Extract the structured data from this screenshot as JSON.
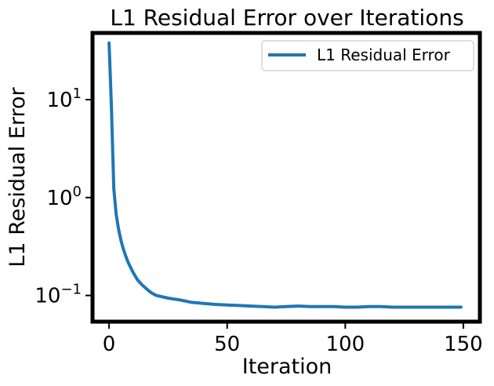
{
  "chart_data": {
    "type": "line",
    "title": "L1 Residual Error over Iterations",
    "xlabel": "Iteration",
    "ylabel": "L1 Residual Error",
    "yscale": "log",
    "xlim": [
      -7,
      157
    ],
    "ylim": [
      0.054,
      48
    ],
    "grid": false,
    "legend": {
      "position": "top-right"
    },
    "x_ticks": [
      {
        "value": 0,
        "label": "0"
      },
      {
        "value": 50,
        "label": "50"
      },
      {
        "value": 100,
        "label": "100"
      },
      {
        "value": 150,
        "label": "150"
      }
    ],
    "y_ticks": [
      {
        "value": 0.1,
        "base": "10",
        "exp": "−1"
      },
      {
        "value": 1,
        "base": "10",
        "exp": "0"
      },
      {
        "value": 10,
        "base": "10",
        "exp": "1"
      }
    ],
    "series": [
      {
        "name": "L1 Residual Error",
        "color": "#1f77b4",
        "x": [
          0,
          1,
          2,
          3,
          4,
          5,
          6,
          7,
          8,
          10,
          12,
          14,
          16,
          18,
          20,
          25,
          30,
          35,
          40,
          45,
          50,
          55,
          60,
          65,
          70,
          75,
          80,
          85,
          90,
          95,
          100,
          105,
          110,
          115,
          120,
          125,
          130,
          135,
          140,
          145,
          149
        ],
        "y": [
          38,
          8.5,
          1.25,
          0.68,
          0.48,
          0.37,
          0.3,
          0.255,
          0.22,
          0.175,
          0.145,
          0.128,
          0.116,
          0.106,
          0.1,
          0.094,
          0.09,
          0.085,
          0.083,
          0.081,
          0.08,
          0.079,
          0.078,
          0.077,
          0.076,
          0.077,
          0.078,
          0.077,
          0.077,
          0.077,
          0.076,
          0.076,
          0.077,
          0.077,
          0.076,
          0.076,
          0.076,
          0.076,
          0.076,
          0.076,
          0.076
        ]
      }
    ]
  }
}
